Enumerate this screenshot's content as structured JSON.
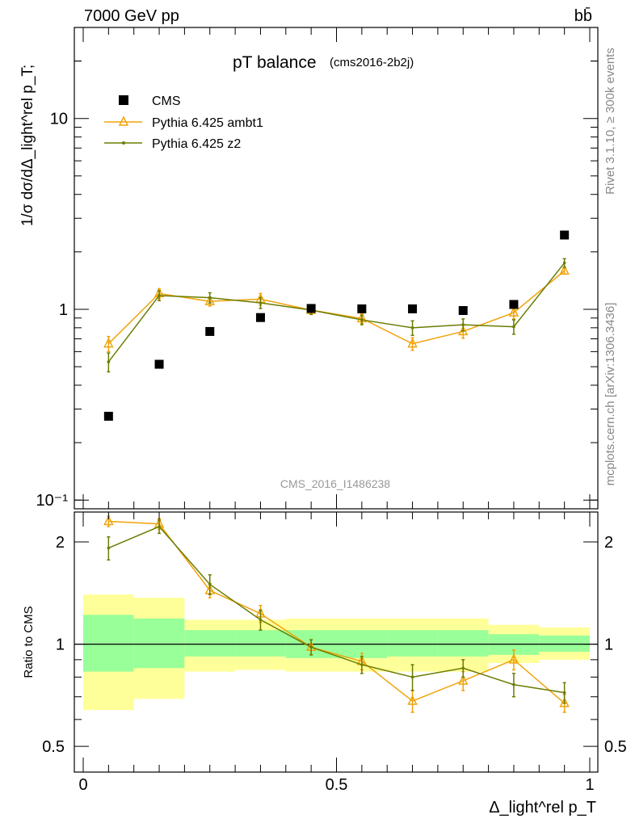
{
  "header": {
    "energy_label": "7000 GeV pp",
    "process_label": "bb̄"
  },
  "side_labels": {
    "rivet": "Rivet 3.1.10, ≥ 300k events",
    "mcplots": "mcplots.cern.ch [arXiv:1306.3436]"
  },
  "chart_data": [
    {
      "type": "scatter",
      "panel": "main",
      "title": "pT balance",
      "subtitle": "(cms2016-2b2j)",
      "watermark": "CMS_2016_I1486238",
      "xlabel": "Δ_light^rel p_T",
      "ylabel": "1/σ dσ/dΔ_light^rel p_T;",
      "yscale": "log",
      "xlim": [
        -0.02,
        1.02
      ],
      "ylim": [
        0.09,
        30
      ],
      "x_ticks": [
        "0",
        "0.5",
        "1"
      ],
      "y_ticks": [
        "10⁻¹",
        "1",
        "10"
      ],
      "legend_position": "top-left",
      "x": [
        0.05,
        0.15,
        0.25,
        0.35,
        0.45,
        0.55,
        0.65,
        0.75,
        0.85,
        0.95
      ],
      "series": [
        {
          "name": "CMS",
          "color": "#000000",
          "marker": "square",
          "values": [
            0.275,
            0.515,
            0.765,
            0.905,
            1.01,
            1.005,
            1.005,
            0.985,
            1.06,
            2.45
          ]
        },
        {
          "name": "Pythia 6.425 ambt1",
          "color": "#f0a30a",
          "marker": "triangle",
          "values": [
            0.66,
            1.21,
            1.1,
            1.13,
            0.99,
            0.895,
            0.66,
            0.765,
            0.96,
            1.59
          ],
          "errors": [
            0.06,
            0.07,
            0.06,
            0.08,
            0.05,
            0.05,
            0.05,
            0.06,
            0.07,
            0.06
          ]
        },
        {
          "name": "Pythia 6.425 z2",
          "color": "#6b7d00",
          "marker": "dot",
          "values": [
            0.53,
            1.18,
            1.15,
            1.08,
            0.99,
            0.88,
            0.8,
            0.83,
            0.81,
            1.75
          ],
          "errors": [
            0.06,
            0.07,
            0.07,
            0.07,
            0.05,
            0.05,
            0.07,
            0.06,
            0.07,
            0.09
          ]
        }
      ]
    },
    {
      "type": "line",
      "panel": "ratio",
      "ylabel": "Ratio to CMS",
      "ylim": [
        0.42,
        2.45
      ],
      "y_ticks": [
        "0.5",
        "1",
        "2"
      ],
      "x": [
        0.05,
        0.15,
        0.25,
        0.35,
        0.45,
        0.55,
        0.65,
        0.75,
        0.85,
        0.95
      ],
      "bin_edges": [
        0.0,
        0.1,
        0.2,
        0.3,
        0.4,
        0.5,
        0.6,
        0.7,
        0.8,
        0.9,
        1.0
      ],
      "band_inner": [
        [
          0.83,
          1.22
        ],
        [
          0.85,
          1.19
        ],
        [
          0.92,
          1.1
        ],
        [
          0.92,
          1.1
        ],
        [
          0.91,
          1.1
        ],
        [
          0.91,
          1.1
        ],
        [
          0.92,
          1.1
        ],
        [
          0.92,
          1.1
        ],
        [
          0.93,
          1.07
        ],
        [
          0.95,
          1.06
        ]
      ],
      "band_outer": [
        [
          0.64,
          1.4
        ],
        [
          0.69,
          1.37
        ],
        [
          0.83,
          1.18
        ],
        [
          0.84,
          1.18
        ],
        [
          0.83,
          1.19
        ],
        [
          0.83,
          1.19
        ],
        [
          0.83,
          1.19
        ],
        [
          0.83,
          1.19
        ],
        [
          0.88,
          1.14
        ],
        [
          0.9,
          1.12
        ]
      ],
      "series": [
        {
          "name": "Pythia 6.425 ambt1",
          "color": "#f0a30a",
          "marker": "triangle",
          "values": [
            2.3,
            2.26,
            1.44,
            1.23,
            0.98,
            0.89,
            0.68,
            0.78,
            0.9,
            0.67
          ],
          "errors": [
            0.08,
            0.08,
            0.07,
            0.07,
            0.05,
            0.05,
            0.05,
            0.05,
            0.06,
            0.04
          ]
        },
        {
          "name": "Pythia 6.425 z2",
          "color": "#6b7d00",
          "marker": "dot",
          "values": [
            1.92,
            2.22,
            1.5,
            1.18,
            0.98,
            0.87,
            0.8,
            0.85,
            0.76,
            0.72
          ],
          "errors": [
            0.15,
            0.1,
            0.1,
            0.08,
            0.05,
            0.05,
            0.07,
            0.05,
            0.06,
            0.05
          ]
        }
      ]
    }
  ]
}
